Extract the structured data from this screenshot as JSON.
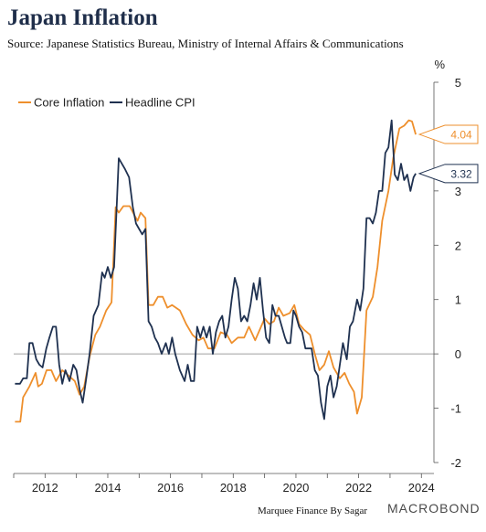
{
  "header": {
    "title": "Japan Inflation",
    "subtitle": "Source: Japanese Statistics Bureau, Ministry of Internal Affairs & Communications"
  },
  "footer": {
    "credit": "Marquee Finance By Sagar",
    "brand": "MACROBOND"
  },
  "colors": {
    "core": "#ee8f2c",
    "headline": "#1f3150",
    "zero_line": "#808080",
    "axis": "#555555"
  },
  "chart_data": {
    "type": "line",
    "title": "Japan Inflation",
    "subtitle": "Source: Japanese Statistics Bureau, Ministry of Internal Affairs & Communications",
    "y_unit": "%",
    "xlim": [
      2011.0,
      2024.4
    ],
    "ylim": [
      -2.0,
      5.0
    ],
    "x_ticks": [
      2012,
      2014,
      2016,
      2018,
      2020,
      2022,
      2024
    ],
    "x_tick_labels": [
      "2012",
      "2014",
      "2016",
      "2018",
      "2020",
      "2022",
      "2024"
    ],
    "y_ticks": [
      -2,
      -1,
      0,
      1,
      2,
      3,
      4,
      5
    ],
    "y_tick_labels": [
      "-2",
      "-1",
      "0",
      "1",
      "2",
      "3",
      "4",
      "5"
    ],
    "legend_position": "top-left",
    "series": [
      {
        "name": "Core Inflation",
        "color": "#ee8f2c",
        "end_label": "4.04",
        "points": [
          [
            2011.04,
            -1.25
          ],
          [
            2011.21,
            -1.25
          ],
          [
            2011.3,
            -0.8
          ],
          [
            2011.5,
            -0.6
          ],
          [
            2011.7,
            -0.35
          ],
          [
            2011.78,
            -0.6
          ],
          [
            2011.9,
            -0.55
          ],
          [
            2012.05,
            -0.3
          ],
          [
            2012.2,
            -0.3
          ],
          [
            2012.35,
            -0.5
          ],
          [
            2012.55,
            -0.3
          ],
          [
            2012.75,
            -0.4
          ],
          [
            2012.95,
            -0.5
          ],
          [
            2013.1,
            -0.75
          ],
          [
            2013.25,
            -0.6
          ],
          [
            2013.42,
            -0.05
          ],
          [
            2013.6,
            0.35
          ],
          [
            2013.75,
            0.5
          ],
          [
            2013.95,
            0.8
          ],
          [
            2014.12,
            0.95
          ],
          [
            2014.25,
            2.7
          ],
          [
            2014.35,
            2.6
          ],
          [
            2014.5,
            2.72
          ],
          [
            2014.7,
            2.72
          ],
          [
            2014.85,
            2.55
          ],
          [
            2014.95,
            2.45
          ],
          [
            2015.05,
            2.6
          ],
          [
            2015.2,
            2.5
          ],
          [
            2015.3,
            0.9
          ],
          [
            2015.45,
            0.9
          ],
          [
            2015.6,
            1.05
          ],
          [
            2015.75,
            1.05
          ],
          [
            2015.9,
            0.85
          ],
          [
            2016.05,
            0.9
          ],
          [
            2016.3,
            0.8
          ],
          [
            2016.5,
            0.55
          ],
          [
            2016.7,
            0.35
          ],
          [
            2016.9,
            0.25
          ],
          [
            2017.05,
            0.3
          ],
          [
            2017.2,
            0.1
          ],
          [
            2017.4,
            0.1
          ],
          [
            2017.6,
            0.4
          ],
          [
            2017.8,
            0.35
          ],
          [
            2017.95,
            0.2
          ],
          [
            2018.15,
            0.3
          ],
          [
            2018.35,
            0.3
          ],
          [
            2018.5,
            0.5
          ],
          [
            2018.7,
            0.25
          ],
          [
            2018.85,
            0.45
          ],
          [
            2019.0,
            0.65
          ],
          [
            2019.15,
            0.55
          ],
          [
            2019.3,
            0.6
          ],
          [
            2019.45,
            0.85
          ],
          [
            2019.6,
            0.7
          ],
          [
            2019.8,
            0.75
          ],
          [
            2019.95,
            0.9
          ],
          [
            2020.1,
            0.55
          ],
          [
            2020.25,
            0.45
          ],
          [
            2020.45,
            0.35
          ],
          [
            2020.6,
            0.0
          ],
          [
            2020.75,
            -0.3
          ],
          [
            2020.9,
            -0.2
          ],
          [
            2021.05,
            0.05
          ],
          [
            2021.2,
            -0.25
          ],
          [
            2021.4,
            -0.45
          ],
          [
            2021.55,
            -0.35
          ],
          [
            2021.7,
            -0.55
          ],
          [
            2021.85,
            -0.7
          ],
          [
            2021.95,
            -1.1
          ],
          [
            2022.1,
            -0.8
          ],
          [
            2022.25,
            0.8
          ],
          [
            2022.45,
            1.05
          ],
          [
            2022.6,
            1.6
          ],
          [
            2022.75,
            2.45
          ],
          [
            2022.95,
            3.0
          ],
          [
            2023.1,
            3.6
          ],
          [
            2023.3,
            4.15
          ],
          [
            2023.45,
            4.2
          ],
          [
            2023.6,
            4.3
          ],
          [
            2023.7,
            4.28
          ],
          [
            2023.82,
            4.04
          ]
        ]
      },
      {
        "name": "Headline CPI",
        "color": "#1f3150",
        "end_label": "3.32",
        "points": [
          [
            2011.04,
            -0.55
          ],
          [
            2011.2,
            -0.55
          ],
          [
            2011.3,
            -0.45
          ],
          [
            2011.42,
            -0.45
          ],
          [
            2011.5,
            0.2
          ],
          [
            2011.6,
            0.2
          ],
          [
            2011.72,
            -0.1
          ],
          [
            2011.82,
            -0.2
          ],
          [
            2011.92,
            -0.25
          ],
          [
            2012.04,
            0.1
          ],
          [
            2012.14,
            0.3
          ],
          [
            2012.25,
            0.5
          ],
          [
            2012.35,
            0.5
          ],
          [
            2012.45,
            -0.2
          ],
          [
            2012.55,
            -0.55
          ],
          [
            2012.65,
            -0.3
          ],
          [
            2012.78,
            -0.5
          ],
          [
            2012.9,
            -0.2
          ],
          [
            2013.0,
            -0.3
          ],
          [
            2013.1,
            -0.65
          ],
          [
            2013.2,
            -0.9
          ],
          [
            2013.3,
            -0.5
          ],
          [
            2013.42,
            0.0
          ],
          [
            2013.55,
            0.7
          ],
          [
            2013.7,
            0.9
          ],
          [
            2013.82,
            1.5
          ],
          [
            2013.9,
            1.4
          ],
          [
            2014.0,
            1.6
          ],
          [
            2014.1,
            1.4
          ],
          [
            2014.2,
            1.6
          ],
          [
            2014.35,
            3.6
          ],
          [
            2014.45,
            3.5
          ],
          [
            2014.55,
            3.4
          ],
          [
            2014.68,
            3.25
          ],
          [
            2014.8,
            2.7
          ],
          [
            2014.9,
            2.4
          ],
          [
            2015.0,
            2.3
          ],
          [
            2015.1,
            2.2
          ],
          [
            2015.2,
            2.3
          ],
          [
            2015.3,
            0.6
          ],
          [
            2015.4,
            0.5
          ],
          [
            2015.5,
            0.3
          ],
          [
            2015.6,
            0.2
          ],
          [
            2015.72,
            0.0
          ],
          [
            2015.85,
            0.2
          ],
          [
            2015.95,
            0.0
          ],
          [
            2016.05,
            0.3
          ],
          [
            2016.15,
            0.0
          ],
          [
            2016.3,
            -0.3
          ],
          [
            2016.45,
            -0.5
          ],
          [
            2016.55,
            -0.2
          ],
          [
            2016.65,
            -0.5
          ],
          [
            2016.75,
            -0.5
          ],
          [
            2016.85,
            0.5
          ],
          [
            2016.95,
            0.3
          ],
          [
            2017.05,
            0.5
          ],
          [
            2017.15,
            0.3
          ],
          [
            2017.25,
            0.5
          ],
          [
            2017.35,
            0.0
          ],
          [
            2017.45,
            0.4
          ],
          [
            2017.55,
            0.6
          ],
          [
            2017.65,
            0.7
          ],
          [
            2017.75,
            0.3
          ],
          [
            2017.85,
            0.5
          ],
          [
            2017.95,
            1.0
          ],
          [
            2018.05,
            1.4
          ],
          [
            2018.15,
            1.2
          ],
          [
            2018.25,
            0.6
          ],
          [
            2018.35,
            0.7
          ],
          [
            2018.45,
            0.6
          ],
          [
            2018.55,
            0.9
          ],
          [
            2018.65,
            1.3
          ],
          [
            2018.75,
            1.0
          ],
          [
            2018.85,
            1.4
          ],
          [
            2018.95,
            0.8
          ],
          [
            2019.05,
            0.3
          ],
          [
            2019.15,
            0.2
          ],
          [
            2019.25,
            0.9
          ],
          [
            2019.35,
            0.7
          ],
          [
            2019.45,
            0.7
          ],
          [
            2019.55,
            0.5
          ],
          [
            2019.65,
            0.3
          ],
          [
            2019.72,
            0.2
          ],
          [
            2019.82,
            0.2
          ],
          [
            2019.92,
            0.8
          ],
          [
            2020.0,
            0.7
          ],
          [
            2020.1,
            0.5
          ],
          [
            2020.2,
            0.4
          ],
          [
            2020.3,
            0.1
          ],
          [
            2020.4,
            0.1
          ],
          [
            2020.5,
            0.1
          ],
          [
            2020.6,
            -0.3
          ],
          [
            2020.7,
            -0.4
          ],
          [
            2020.8,
            -0.9
          ],
          [
            2020.9,
            -1.2
          ],
          [
            2021.0,
            -0.6
          ],
          [
            2021.1,
            -0.4
          ],
          [
            2021.2,
            -0.8
          ],
          [
            2021.3,
            -0.6
          ],
          [
            2021.4,
            -0.2
          ],
          [
            2021.5,
            0.2
          ],
          [
            2021.62,
            -0.1
          ],
          [
            2021.72,
            0.5
          ],
          [
            2021.82,
            0.6
          ],
          [
            2021.95,
            1.0
          ],
          [
            2022.05,
            0.8
          ],
          [
            2022.15,
            1.2
          ],
          [
            2022.25,
            2.5
          ],
          [
            2022.35,
            2.5
          ],
          [
            2022.45,
            2.4
          ],
          [
            2022.55,
            2.6
          ],
          [
            2022.65,
            3.0
          ],
          [
            2022.75,
            3.0
          ],
          [
            2022.85,
            3.7
          ],
          [
            2022.95,
            3.8
          ],
          [
            2023.05,
            4.3
          ],
          [
            2023.15,
            3.3
          ],
          [
            2023.25,
            3.2
          ],
          [
            2023.35,
            3.5
          ],
          [
            2023.45,
            3.2
          ],
          [
            2023.55,
            3.3
          ],
          [
            2023.65,
            3.0
          ],
          [
            2023.75,
            3.25
          ],
          [
            2023.82,
            3.32
          ]
        ]
      }
    ]
  }
}
